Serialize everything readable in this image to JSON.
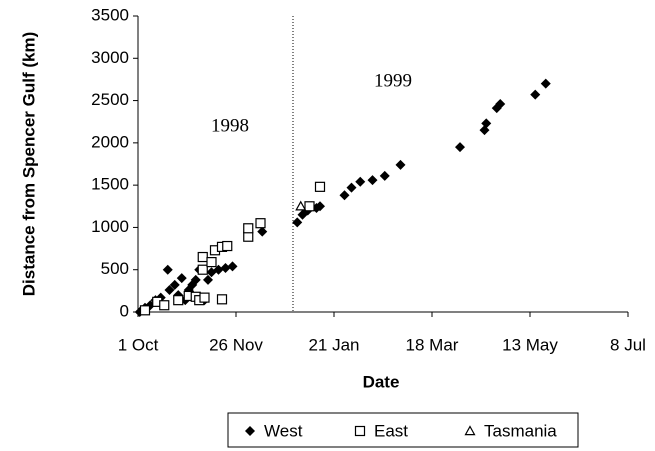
{
  "chart_data": {
    "type": "scatter",
    "xlabel": "Date",
    "ylabel": "Distance from Spencer Gulf (km)",
    "annotations": [
      "1998",
      "1999"
    ],
    "xlim": [
      0,
      280
    ],
    "xticks": [
      {
        "value": 0,
        "label": "1 Oct"
      },
      {
        "value": 56,
        "label": "26 Nov"
      },
      {
        "value": 112,
        "label": "21 Jan"
      },
      {
        "value": 168,
        "label": "18 Mar"
      },
      {
        "value": 224,
        "label": "13 May"
      },
      {
        "value": 280,
        "label": "8 Jul"
      }
    ],
    "ylim": [
      0,
      3500
    ],
    "yticks": [
      0,
      500,
      1000,
      1500,
      2000,
      2500,
      3000,
      3500
    ],
    "series": [
      {
        "name": "West",
        "color": "#000000",
        "marker": "diamond",
        "x": [
          1,
          4,
          7,
          10,
          13,
          17,
          18,
          21,
          23,
          25,
          27,
          29,
          31,
          33,
          35,
          38,
          40,
          42,
          46,
          50,
          54,
          63,
          71,
          91,
          94,
          97,
          99,
          102,
          104,
          118,
          122,
          127,
          134,
          141,
          150,
          184,
          198,
          199,
          205,
          207,
          227,
          233
        ],
        "values": [
          0,
          50,
          80,
          140,
          170,
          500,
          260,
          320,
          200,
          400,
          140,
          260,
          320,
          380,
          500,
          140,
          380,
          470,
          500,
          520,
          540,
          970,
          950,
          1060,
          1150,
          1200,
          1250,
          1230,
          1250,
          1380,
          1470,
          1540,
          1560,
          1610,
          1740,
          1950,
          2150,
          2230,
          2410,
          2460,
          2570,
          2700
        ]
      },
      {
        "name": "East",
        "color": "#000000",
        "marker": "square",
        "x": [
          4,
          11,
          15,
          23,
          29,
          33,
          35,
          38,
          37,
          37,
          42,
          44,
          48,
          51,
          48,
          63,
          63,
          70,
          98,
          104
        ],
        "values": [
          20,
          120,
          80,
          140,
          190,
          180,
          140,
          170,
          500,
          650,
          590,
          730,
          770,
          780,
          150,
          890,
          990,
          1050,
          1250,
          1480
        ]
      },
      {
        "name": "Tasmania",
        "color": "#000000",
        "marker": "triangle",
        "x": [
          93
        ],
        "values": [
          1250
        ]
      }
    ]
  }
}
